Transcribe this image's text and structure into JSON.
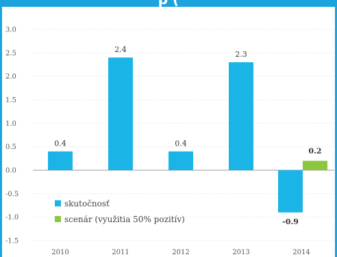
{
  "title_fragment": "p (",
  "colors": {
    "accent": "#1aa3dc",
    "skutocnost": "#1ab4e6",
    "scenar": "#8cc63f",
    "grid": "#d9d9d9",
    "zero_line": "#9a9a9a"
  },
  "chart_data": {
    "type": "bar",
    "categories": [
      "2010",
      "2011",
      "2012",
      "2013",
      "2014"
    ],
    "series": [
      {
        "name": "skutočnosť",
        "values": [
          0.4,
          2.4,
          0.4,
          2.3,
          -0.9
        ],
        "labels": [
          "0.4",
          "2.4",
          "0.4",
          "2.3",
          "-0.9"
        ]
      },
      {
        "name": "scenár (využitia 50% pozitív)",
        "values": [
          null,
          null,
          null,
          null,
          0.2
        ],
        "labels": [
          null,
          null,
          null,
          null,
          "0.2"
        ]
      }
    ],
    "ylim": [
      -1.5,
      3.0
    ],
    "yticks": [
      3.0,
      2.5,
      2.0,
      1.5,
      1.0,
      0.5,
      0.0,
      -0.5,
      -1.0,
      -1.5
    ],
    "ytick_labels": [
      "3.0",
      "2.5",
      "2.0",
      "1.5",
      "1.0",
      "0.5",
      "0.0",
      "-0.5",
      "-1.0",
      "-1.5"
    ],
    "grid": true,
    "legend_position": "lower-left"
  }
}
